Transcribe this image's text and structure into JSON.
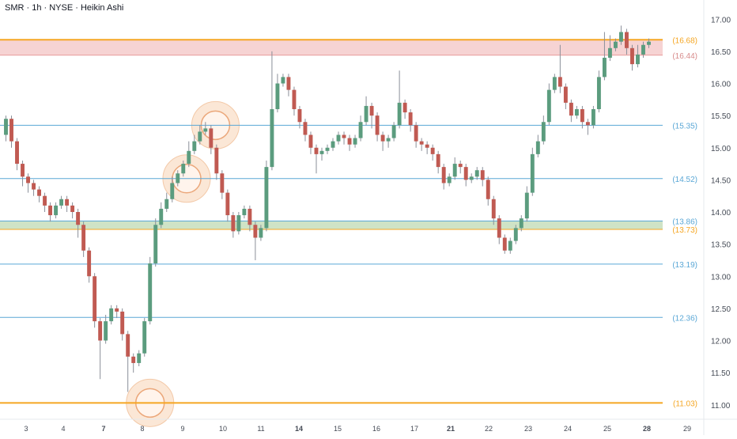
{
  "header": {
    "title": "SMR · 1h · NYSE · Heikin Ashi"
  },
  "colors": {
    "up": "#5b9c7e",
    "down": "#c05a52",
    "wick": "#8a8f99",
    "orange": "#f5a623",
    "blue": "#5aa7d6",
    "green_zone": "#cfe3c6",
    "red_zone": "#f6d3d3",
    "halo": "#f3c9a8",
    "arrow": "#e5334b"
  },
  "chart_data": {
    "type": "candlestick",
    "title": "SMR · 1h · NYSE · Heikin Ashi",
    "y_ticks": [
      "17.00",
      "16.50",
      "16.00",
      "15.50",
      "15.00",
      "14.50",
      "14.00",
      "13.50",
      "13.00",
      "12.50",
      "12.00",
      "11.50",
      "11.00"
    ],
    "ylim": [
      10.8,
      17.2
    ],
    "x_ticks": [
      {
        "label": "3",
        "bold": false
      },
      {
        "label": "4",
        "bold": false
      },
      {
        "label": "7",
        "bold": true
      },
      {
        "label": "8",
        "bold": false
      },
      {
        "label": "9",
        "bold": false
      },
      {
        "label": "10",
        "bold": false
      },
      {
        "label": "11",
        "bold": false
      },
      {
        "label": "14",
        "bold": true
      },
      {
        "label": "15",
        "bold": false
      },
      {
        "label": "16",
        "bold": false
      },
      {
        "label": "17",
        "bold": false
      },
      {
        "label": "21",
        "bold": true
      },
      {
        "label": "22",
        "bold": false
      },
      {
        "label": "23",
        "bold": false
      },
      {
        "label": "24",
        "bold": false
      },
      {
        "label": "25",
        "bold": false
      },
      {
        "label": "28",
        "bold": true
      },
      {
        "label": "29",
        "bold": false
      }
    ],
    "levels": [
      {
        "label": "(16.68)",
        "value": 16.68,
        "color": "orange",
        "style": "thick"
      },
      {
        "label": "(16.44)",
        "value": 16.44,
        "color": "red",
        "style": "zone-bottom"
      },
      {
        "label": "(15.35)",
        "value": 15.35,
        "color": "blue",
        "style": "thin"
      },
      {
        "label": "(14.52)",
        "value": 14.52,
        "color": "blue",
        "style": "thin"
      },
      {
        "label": "(13.86)",
        "value": 13.86,
        "color": "blue",
        "style": "thin"
      },
      {
        "label": "(13.73)",
        "value": 13.73,
        "color": "orange",
        "style": "zone-bottom"
      },
      {
        "label": "(13.19)",
        "value": 13.19,
        "color": "blue",
        "style": "thin"
      },
      {
        "label": "(12.36)",
        "value": 12.36,
        "color": "blue",
        "style": "thin"
      },
      {
        "label": "(11.03)",
        "value": 11.03,
        "color": "orange",
        "style": "thick"
      }
    ],
    "zones": [
      {
        "from": 16.44,
        "to": 16.68,
        "color": "red_zone"
      },
      {
        "from": 13.73,
        "to": 13.86,
        "color": "green_zone"
      }
    ],
    "halos": [
      {
        "x": 37.8,
        "y": 15.35
      },
      {
        "x": 32.6,
        "y": 14.52
      },
      {
        "x": 26.0,
        "y": 11.03
      }
    ],
    "arrow": {
      "x": 140.5,
      "y": 16.82
    },
    "candles": [
      [
        15.2,
        15.45,
        15.1,
        15.5
      ],
      [
        15.45,
        15.1,
        15.0,
        15.5
      ],
      [
        15.1,
        14.75,
        14.65,
        15.15
      ],
      [
        14.75,
        14.55,
        14.4,
        14.8
      ],
      [
        14.55,
        14.45,
        14.3,
        14.6
      ],
      [
        14.45,
        14.35,
        14.25,
        14.5
      ],
      [
        14.35,
        14.25,
        14.15,
        14.4
      ],
      [
        14.25,
        14.1,
        14.0,
        14.3
      ],
      [
        14.1,
        13.95,
        13.85,
        14.15
      ],
      [
        13.95,
        14.1,
        13.9,
        14.15
      ],
      [
        14.1,
        14.2,
        14.05,
        14.25
      ],
      [
        14.2,
        14.1,
        14.0,
        14.25
      ],
      [
        14.1,
        14.0,
        13.9,
        14.15
      ],
      [
        14.0,
        13.8,
        13.6,
        14.05
      ],
      [
        13.8,
        13.4,
        13.3,
        13.85
      ],
      [
        13.4,
        13.0,
        12.9,
        13.45
      ],
      [
        13.0,
        12.3,
        12.2,
        13.05
      ],
      [
        12.3,
        12.0,
        11.4,
        12.35
      ],
      [
        12.0,
        12.3,
        11.95,
        12.4
      ],
      [
        12.3,
        12.5,
        12.25,
        12.55
      ],
      [
        12.5,
        12.45,
        12.35,
        12.55
      ],
      [
        12.45,
        12.1,
        12.0,
        12.5
      ],
      [
        12.1,
        11.75,
        11.2,
        12.15
      ],
      [
        11.75,
        11.65,
        11.5,
        11.8
      ],
      [
        11.65,
        11.8,
        11.6,
        11.85
      ],
      [
        11.8,
        12.3,
        11.75,
        12.35
      ],
      [
        12.3,
        13.2,
        12.25,
        13.3
      ],
      [
        13.2,
        13.8,
        13.15,
        13.9
      ],
      [
        13.8,
        14.05,
        13.75,
        14.15
      ],
      [
        14.05,
        14.2,
        14.0,
        14.3
      ],
      [
        14.2,
        14.45,
        14.15,
        14.55
      ],
      [
        14.45,
        14.6,
        14.4,
        14.65
      ],
      [
        14.6,
        14.75,
        14.55,
        14.8
      ],
      [
        14.75,
        14.95,
        14.7,
        15.1
      ],
      [
        14.95,
        15.1,
        14.9,
        15.2
      ],
      [
        15.1,
        15.25,
        15.05,
        15.35
      ],
      [
        15.25,
        15.3,
        15.2,
        15.4
      ],
      [
        15.3,
        15.0,
        14.9,
        15.35
      ],
      [
        15.0,
        14.6,
        14.5,
        15.05
      ],
      [
        14.6,
        14.3,
        14.2,
        14.65
      ],
      [
        14.3,
        13.95,
        13.85,
        14.35
      ],
      [
        13.95,
        13.7,
        13.6,
        14.0
      ],
      [
        13.7,
        13.95,
        13.65,
        14.0
      ],
      [
        13.95,
        14.05,
        13.9,
        14.1
      ],
      [
        14.05,
        13.8,
        13.7,
        14.1
      ],
      [
        13.8,
        13.6,
        13.25,
        13.85
      ],
      [
        13.6,
        13.75,
        13.55,
        13.8
      ],
      [
        13.75,
        14.7,
        13.7,
        14.8
      ],
      [
        14.7,
        15.6,
        14.65,
        16.5
      ],
      [
        15.6,
        16.0,
        15.55,
        16.15
      ],
      [
        16.0,
        16.1,
        15.95,
        16.15
      ],
      [
        16.1,
        15.9,
        15.8,
        16.15
      ],
      [
        15.9,
        15.6,
        15.5,
        15.95
      ],
      [
        15.6,
        15.4,
        15.3,
        15.65
      ],
      [
        15.4,
        15.2,
        15.1,
        15.45
      ],
      [
        15.2,
        15.0,
        14.9,
        15.25
      ],
      [
        15.0,
        14.9,
        14.6,
        15.05
      ],
      [
        14.9,
        14.95,
        14.8,
        15.0
      ],
      [
        14.95,
        15.0,
        14.9,
        15.05
      ],
      [
        15.0,
        15.1,
        14.95,
        15.15
      ],
      [
        15.1,
        15.2,
        15.05,
        15.25
      ],
      [
        15.2,
        15.15,
        15.05,
        15.25
      ],
      [
        15.15,
        15.05,
        14.95,
        15.2
      ],
      [
        15.05,
        15.15,
        15.0,
        15.2
      ],
      [
        15.15,
        15.4,
        15.1,
        15.5
      ],
      [
        15.4,
        15.65,
        15.35,
        15.8
      ],
      [
        15.65,
        15.5,
        15.3,
        15.7
      ],
      [
        15.5,
        15.2,
        15.1,
        15.55
      ],
      [
        15.2,
        15.1,
        14.95,
        15.25
      ],
      [
        15.1,
        15.15,
        15.0,
        15.2
      ],
      [
        15.15,
        15.35,
        15.1,
        15.4
      ],
      [
        15.35,
        15.7,
        15.3,
        16.2
      ],
      [
        15.7,
        15.55,
        15.45,
        15.75
      ],
      [
        15.55,
        15.35,
        15.25,
        15.6
      ],
      [
        15.35,
        15.1,
        15.0,
        15.4
      ],
      [
        15.1,
        15.05,
        14.95,
        15.15
      ],
      [
        15.05,
        15.0,
        14.9,
        15.1
      ],
      [
        15.0,
        14.9,
        14.8,
        15.05
      ],
      [
        14.9,
        14.7,
        14.6,
        14.95
      ],
      [
        14.7,
        14.45,
        14.35,
        14.75
      ],
      [
        14.45,
        14.55,
        14.4,
        14.6
      ],
      [
        14.55,
        14.75,
        14.5,
        14.85
      ],
      [
        14.75,
        14.7,
        14.6,
        14.8
      ],
      [
        14.7,
        14.5,
        14.4,
        14.75
      ],
      [
        14.5,
        14.55,
        14.45,
        14.6
      ],
      [
        14.55,
        14.65,
        14.5,
        14.7
      ],
      [
        14.65,
        14.5,
        14.4,
        14.7
      ],
      [
        14.5,
        14.2,
        14.1,
        14.55
      ],
      [
        14.2,
        13.9,
        13.8,
        14.25
      ],
      [
        13.9,
        13.6,
        13.5,
        13.95
      ],
      [
        13.6,
        13.4,
        13.35,
        13.65
      ],
      [
        13.4,
        13.55,
        13.35,
        13.6
      ],
      [
        13.55,
        13.75,
        13.5,
        13.8
      ],
      [
        13.75,
        13.9,
        13.7,
        13.95
      ],
      [
        13.9,
        14.3,
        13.85,
        14.4
      ],
      [
        14.3,
        14.9,
        14.25,
        15.0
      ],
      [
        14.9,
        15.1,
        14.85,
        15.2
      ],
      [
        15.1,
        15.4,
        15.05,
        15.5
      ],
      [
        15.4,
        15.9,
        15.35,
        16.0
      ],
      [
        15.9,
        16.1,
        15.85,
        16.15
      ],
      [
        16.1,
        15.95,
        15.85,
        16.6
      ],
      [
        15.95,
        15.7,
        15.6,
        16.0
      ],
      [
        15.7,
        15.5,
        15.4,
        15.75
      ],
      [
        15.5,
        15.6,
        15.45,
        15.65
      ],
      [
        15.6,
        15.4,
        15.3,
        15.65
      ],
      [
        15.4,
        15.35,
        15.2,
        15.45
      ],
      [
        15.35,
        15.6,
        15.3,
        15.65
      ],
      [
        15.6,
        16.1,
        15.55,
        16.2
      ],
      [
        16.1,
        16.4,
        16.05,
        16.8
      ],
      [
        16.4,
        16.55,
        16.35,
        16.75
      ],
      [
        16.55,
        16.65,
        16.5,
        16.7
      ],
      [
        16.65,
        16.8,
        16.6,
        16.9
      ],
      [
        16.8,
        16.55,
        16.45,
        16.85
      ],
      [
        16.55,
        16.3,
        16.2,
        16.6
      ],
      [
        16.3,
        16.45,
        16.25,
        16.6
      ],
      [
        16.45,
        16.6,
        16.4,
        16.65
      ],
      [
        16.6,
        16.65,
        16.55,
        16.7
      ]
    ]
  }
}
